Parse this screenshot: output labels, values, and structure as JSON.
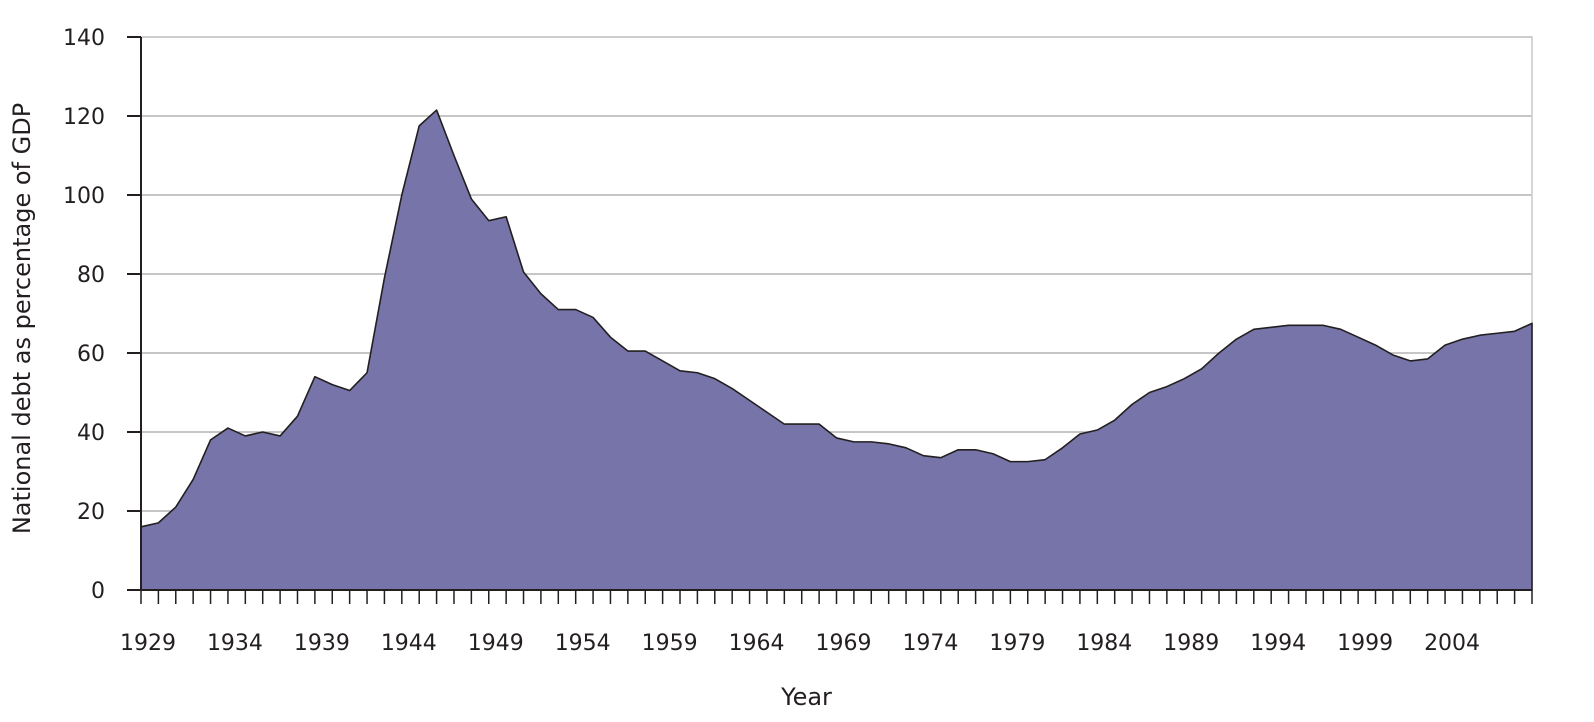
{
  "chart_data": {
    "type": "area",
    "title": "",
    "xlabel": "Year",
    "ylabel": "National debt as percentage of GDP",
    "ylim": [
      0,
      140
    ],
    "xlim": [
      1929,
      2009
    ],
    "y_ticks": [
      0,
      20,
      40,
      60,
      80,
      100,
      120,
      140
    ],
    "x_tick_labels": [
      "1929",
      "1934",
      "1939",
      "1944",
      "1949",
      "1954",
      "1959",
      "1964",
      "1969",
      "1974",
      "1979",
      "1984",
      "1989",
      "1994",
      "1999",
      "2004"
    ],
    "grid": true,
    "legend": "none",
    "colors": {
      "fill": "#7674a8",
      "stroke": "#231f20",
      "grid": "#b3b3b3",
      "plot_border": "#c9c9c9"
    },
    "series": [
      {
        "x": [
          1929,
          1930,
          1931,
          1932,
          1933,
          1934,
          1935,
          1936,
          1937,
          1938,
          1939,
          1940,
          1941,
          1942,
          1943,
          1944,
          1945,
          1946,
          1947,
          1948,
          1949,
          1950,
          1951,
          1952,
          1953,
          1954,
          1955,
          1956,
          1957,
          1958,
          1959,
          1960,
          1961,
          1962,
          1963,
          1964,
          1965,
          1966,
          1967,
          1968,
          1969,
          1970,
          1971,
          1972,
          1973,
          1974,
          1975,
          1976,
          1977,
          1978,
          1979,
          1980,
          1981,
          1982,
          1983,
          1984,
          1985,
          1986,
          1987,
          1988,
          1989,
          1990,
          1991,
          1992,
          1993,
          1994,
          1995,
          1996,
          1997,
          1998,
          1999,
          2000,
          2001,
          2002,
          2003,
          2004,
          2005,
          2006,
          2007,
          2008,
          2009
        ],
        "values": [
          16,
          17,
          21,
          28,
          38,
          41,
          39,
          40,
          39,
          44,
          54,
          52,
          50.5,
          55,
          79,
          100,
          117.5,
          121.5,
          110,
          99,
          93.5,
          94.5,
          80.5,
          75,
          71,
          71,
          69,
          64,
          60.5,
          60.5,
          58,
          55.5,
          55,
          53.5,
          51,
          48,
          45,
          42,
          42,
          42,
          38.5,
          37.5,
          37.5,
          37,
          36,
          34,
          33.5,
          35.5,
          35.5,
          34.5,
          32.5,
          32.5,
          33,
          36,
          39.5,
          40.5,
          43,
          47,
          50,
          51.5,
          53.5,
          56,
          60,
          63.5,
          66,
          66.5,
          67,
          67,
          67,
          66,
          64,
          62,
          59.5,
          58,
          58.5,
          62,
          63.5,
          64.5,
          65,
          65.5,
          67.5
        ]
      }
    ]
  }
}
